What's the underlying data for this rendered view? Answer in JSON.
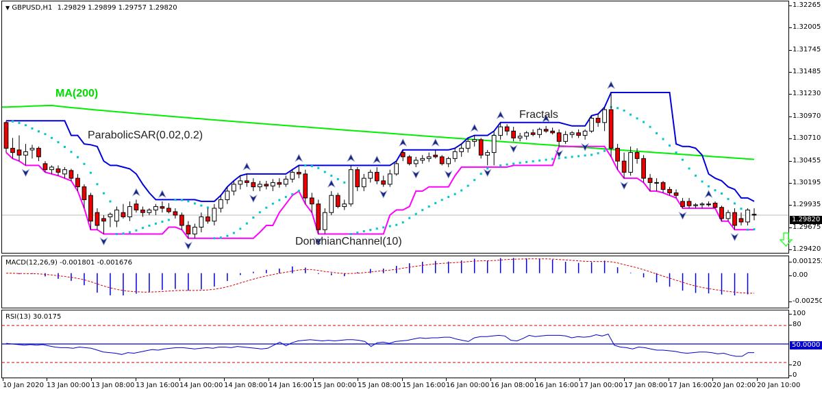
{
  "header": {
    "symbol": "GBPUSD,H1",
    "ohlc": "1.29829 1.29899 1.29757 1.29820",
    "menu_icon": "triangle-down-icon"
  },
  "annotations": {
    "ma": "MA(200)",
    "psar": "ParabolicSAR(0.02,0.2)",
    "fractals": "Fractals",
    "donchian": "DonchianChannel(10)"
  },
  "price_axis": {
    "ticks": [
      "1.32265",
      "1.32005",
      "1.31745",
      "1.31485",
      "1.31230",
      "1.30970",
      "1.30710",
      "1.30455",
      "1.30195",
      "1.29935",
      "1.29675",
      "1.29420"
    ],
    "current_price": "1.29820"
  },
  "macd": {
    "label": "MACD(12,26,9) -0.001801 -0.001676",
    "ticks": [
      "0.001252",
      "0.00",
      "-0.002505"
    ]
  },
  "rsi": {
    "label": "RSI(13) 30.0175",
    "ticks": [
      "100",
      "80",
      "20",
      "0"
    ],
    "current_value": "50.0000"
  },
  "time_axis": {
    "labels": [
      "10 Jan 2020",
      "13 Jan 00:00",
      "13 Jan 08:00",
      "13 Jan 16:00",
      "14 Jan 00:00",
      "14 Jan 08:00",
      "14 Jan 16:00",
      "15 Jan 00:00",
      "15 Jan 08:00",
      "15 Jan 16:00",
      "16 Jan 00:00",
      "16 Jan 08:00",
      "16 Jan 16:00",
      "17 Jan 00:00",
      "17 Jan 08:00",
      "17 Jan 16:00",
      "20 Jan 02:00",
      "20 Jan 10:00"
    ]
  },
  "colors": {
    "ma": "#00ee00",
    "donchian_upper": "#0000dd",
    "donchian_lower": "#ff00ff",
    "psar": "#00c8c8",
    "bear_candle": "#ee0000",
    "bull_candle": "#ffffff",
    "macd_hist": "#0000dd",
    "macd_signal": "#dd0000",
    "rsi_line": "#0000cc",
    "signal_arrow": "#33ff33"
  },
  "chart_data": {
    "type": "candlestick",
    "title": "GBPUSD,H1",
    "ylim": [
      1.2942,
      1.32265
    ],
    "grid": false,
    "current_price": 1.2982,
    "indicators": [
      "MA(200)",
      "ParabolicSAR(0.02,0.2)",
      "Fractals",
      "DonchianChannel(10)",
      "MACD(12,26,9)",
      "RSI(13)"
    ],
    "x_tick_labels": [
      "10 Jan 2020",
      "13 Jan 00:00",
      "13 Jan 08:00",
      "13 Jan 16:00",
      "14 Jan 00:00",
      "14 Jan 08:00",
      "14 Jan 16:00",
      "15 Jan 00:00",
      "15 Jan 08:00",
      "15 Jan 16:00",
      "16 Jan 00:00",
      "16 Jan 08:00",
      "16 Jan 16:00",
      "17 Jan 00:00",
      "17 Jan 08:00",
      "17 Jan 16:00",
      "20 Jan 02:00",
      "20 Jan 10:00"
    ],
    "candles_ohlc": [
      [
        1.309,
        1.3092,
        1.3055,
        1.306
      ],
      [
        1.306,
        1.3072,
        1.3048,
        1.3055
      ],
      [
        1.3058,
        1.3075,
        1.3045,
        1.3052
      ],
      [
        1.3052,
        1.3065,
        1.304,
        1.3056
      ],
      [
        1.3058,
        1.3064,
        1.3048,
        1.306
      ],
      [
        1.306,
        1.3062,
        1.3045,
        1.305
      ],
      [
        1.3042,
        1.3045,
        1.3032,
        1.3035
      ],
      [
        1.3035,
        1.304,
        1.303,
        1.3038
      ],
      [
        1.3036,
        1.304,
        1.3028,
        1.3032
      ],
      [
        1.303,
        1.3038,
        1.3025,
        1.3035
      ],
      [
        1.3034,
        1.3036,
        1.3022,
        1.3025
      ],
      [
        1.3025,
        1.303,
        1.301,
        1.3015
      ],
      [
        1.3015,
        1.3018,
        1.299,
        1.3
      ],
      [
        1.3005,
        1.3008,
        1.2965,
        1.2975
      ],
      [
        1.2985,
        1.299,
        1.2965,
        1.297
      ],
      [
        1.2978,
        1.2982,
        1.296,
        1.2975
      ],
      [
        1.298,
        1.2985,
        1.2968,
        1.2983
      ],
      [
        1.2975,
        1.2992,
        1.2968,
        1.2988
      ],
      [
        1.2985,
        1.2995,
        1.2978,
        1.298
      ],
      [
        1.298,
        1.2998,
        1.2975,
        1.2992
      ],
      [
        1.2995,
        1.3,
        1.2985,
        1.2988
      ],
      [
        1.2988,
        1.2992,
        1.298,
        1.2985
      ],
      [
        1.2985,
        1.299,
        1.2982,
        1.2988
      ],
      [
        1.2988,
        1.2995,
        1.2982,
        1.2992
      ],
      [
        1.2992,
        1.2998,
        1.2985,
        1.299
      ],
      [
        1.299,
        1.2996,
        1.2984,
        1.2986
      ],
      [
        1.2986,
        1.299,
        1.2978,
        1.2982
      ],
      [
        1.2982,
        1.2985,
        1.2965,
        1.297
      ],
      [
        1.297,
        1.2975,
        1.2955,
        1.296
      ],
      [
        1.296,
        1.2972,
        1.2955,
        1.2968
      ],
      [
        1.2968,
        1.2985,
        1.2962,
        1.298
      ],
      [
        1.298,
        1.299,
        1.2972,
        1.2975
      ],
      [
        1.2975,
        1.2995,
        1.297,
        1.299
      ],
      [
        1.299,
        1.3005,
        1.2985,
        1.3
      ],
      [
        1.3,
        1.3015,
        1.2995,
        1.301
      ],
      [
        1.301,
        1.3022,
        1.3005,
        1.3018
      ],
      [
        1.3018,
        1.3028,
        1.3012,
        1.3022
      ],
      [
        1.3022,
        1.303,
        1.3015,
        1.302
      ],
      [
        1.302,
        1.3025,
        1.301,
        1.3015
      ],
      [
        1.3015,
        1.3022,
        1.301,
        1.3018
      ],
      [
        1.3018,
        1.3022,
        1.3012,
        1.3016
      ],
      [
        1.3016,
        1.3024,
        1.301,
        1.302
      ],
      [
        1.302,
        1.3025,
        1.3014,
        1.3018
      ],
      [
        1.3018,
        1.3028,
        1.3015,
        1.3024
      ],
      [
        1.3024,
        1.3035,
        1.302,
        1.3032
      ],
      [
        1.3032,
        1.304,
        1.3025,
        1.303
      ],
      [
        1.303,
        1.3035,
        1.2995,
        1.3002
      ],
      [
        1.3002,
        1.3008,
        1.2985,
        1.2995
      ],
      [
        1.2995,
        1.3,
        1.296,
        1.2965
      ],
      [
        1.2965,
        1.299,
        1.296,
        1.2985
      ],
      [
        1.2985,
        1.301,
        1.2982,
        1.3005
      ],
      [
        1.3005,
        1.3008,
        1.299,
        1.2992
      ],
      [
        1.2992,
        1.3,
        1.2988,
        1.2995
      ],
      [
        1.2995,
        1.304,
        1.2992,
        1.3035
      ],
      [
        1.3035,
        1.3038,
        1.301,
        1.3015
      ],
      [
        1.3015,
        1.303,
        1.301,
        1.3025
      ],
      [
        1.3025,
        1.3035,
        1.302,
        1.3032
      ],
      [
        1.3032,
        1.3038,
        1.3018,
        1.3022
      ],
      [
        1.3022,
        1.3028,
        1.3015,
        1.3018
      ],
      [
        1.3018,
        1.3035,
        1.3015,
        1.303
      ],
      [
        1.303,
        1.3045,
        1.3028,
        1.3042
      ],
      [
        1.3055,
        1.3058,
        1.3045,
        1.305
      ],
      [
        1.305,
        1.3052,
        1.304,
        1.3042
      ],
      [
        1.3042,
        1.305,
        1.3038,
        1.3046
      ],
      [
        1.3046,
        1.3052,
        1.3042,
        1.3048
      ],
      [
        1.3048,
        1.3055,
        1.3044,
        1.305
      ],
      [
        1.3052,
        1.3058,
        1.3048,
        1.305
      ],
      [
        1.305,
        1.3052,
        1.304,
        1.3042
      ],
      [
        1.3042,
        1.305,
        1.3038,
        1.3048
      ],
      [
        1.3048,
        1.306,
        1.3044,
        1.3056
      ],
      [
        1.3056,
        1.3065,
        1.305,
        1.306
      ],
      [
        1.306,
        1.3072,
        1.3055,
        1.3068
      ],
      [
        1.3068,
        1.3075,
        1.3062,
        1.307
      ],
      [
        1.307,
        1.3072,
        1.3048,
        1.3052
      ],
      [
        1.3052,
        1.3058,
        1.304,
        1.3055
      ],
      [
        1.3055,
        1.308,
        1.304,
        1.3075
      ],
      [
        1.3075,
        1.309,
        1.307,
        1.3085
      ],
      [
        1.3085,
        1.3088,
        1.3075,
        1.308
      ],
      [
        1.308,
        1.3085,
        1.3068,
        1.3072
      ],
      [
        1.3072,
        1.3078,
        1.3068,
        1.3074
      ],
      [
        1.3074,
        1.308,
        1.307,
        1.3078
      ],
      [
        1.3078,
        1.3082,
        1.3074,
        1.3076
      ],
      [
        1.3076,
        1.3084,
        1.3072,
        1.3082
      ],
      [
        1.3082,
        1.3086,
        1.3078,
        1.308
      ],
      [
        1.308,
        1.3084,
        1.3076,
        1.3078
      ],
      [
        1.3078,
        1.3082,
        1.3062,
        1.3068
      ],
      [
        1.3068,
        1.308,
        1.3065,
        1.3076
      ],
      [
        1.3076,
        1.308,
        1.3072,
        1.3078
      ],
      [
        1.3078,
        1.3082,
        1.3072,
        1.3075
      ],
      [
        1.3075,
        1.3082,
        1.307,
        1.308
      ],
      [
        1.308,
        1.3098,
        1.3078,
        1.3095
      ],
      [
        1.3095,
        1.31,
        1.3085,
        1.309
      ],
      [
        1.309,
        1.3108,
        1.308,
        1.3105
      ],
      [
        1.3105,
        1.3125,
        1.305,
        1.306
      ],
      [
        1.306,
        1.3065,
        1.3035,
        1.3045
      ],
      [
        1.3045,
        1.3055,
        1.3025,
        1.3032
      ],
      [
        1.3032,
        1.3062,
        1.3028,
        1.3055
      ],
      [
        1.3055,
        1.306,
        1.3042,
        1.3048
      ],
      [
        1.3048,
        1.3052,
        1.302,
        1.3025
      ],
      [
        1.3025,
        1.303,
        1.301,
        1.302
      ],
      [
        1.302,
        1.3025,
        1.301,
        1.302
      ],
      [
        1.302,
        1.3022,
        1.3008,
        1.3012
      ],
      [
        1.3012,
        1.3015,
        1.3005,
        1.3008
      ],
      [
        1.3008,
        1.3012,
        1.3002,
        1.3005
      ],
      [
        1.2998,
        1.3002,
        1.299,
        1.2992
      ],
      [
        1.2998,
        1.3002,
        1.299,
        1.2993
      ],
      [
        1.2993,
        1.2996,
        1.299,
        1.2994
      ],
      [
        1.2994,
        1.2997,
        1.299,
        1.2995
      ],
      [
        1.2995,
        1.2998,
        1.2992,
        1.2994
      ],
      [
        1.2996,
        1.2998,
        1.299,
        1.2991
      ],
      [
        1.2991,
        1.2993,
        1.2975,
        1.2978
      ],
      [
        1.2978,
        1.2988,
        1.2975,
        1.2985
      ],
      [
        1.2985,
        1.299,
        1.2965,
        1.297
      ],
      [
        1.2978,
        1.2985,
        1.297,
        1.2974
      ],
      [
        1.2974,
        1.299,
        1.297,
        1.2988
      ],
      [
        1.2983,
        1.299,
        1.2976,
        1.2982
      ]
    ],
    "ma200": {
      "start": 1.3108,
      "peak": 1.311,
      "end": 1.3047
    },
    "macd_range": [
      -0.002505,
      0.001252
    ],
    "macd_last": {
      "main": -0.001801,
      "signal": -0.001676
    },
    "rsi_levels": [
      20,
      50,
      80
    ],
    "rsi_last": 30.0175,
    "rsi_series": [
      51,
      50,
      49,
      48,
      49,
      48,
      49,
      47,
      45,
      44,
      44,
      43,
      45,
      44,
      43,
      40,
      37,
      36,
      35,
      33,
      36,
      35,
      37,
      39,
      41,
      40,
      42,
      43,
      44,
      44,
      43,
      42,
      43,
      44,
      43,
      45,
      45,
      44,
      46,
      45,
      44,
      43,
      42,
      43,
      48,
      53,
      47,
      52,
      55,
      56,
      57,
      56,
      55,
      56,
      55,
      56,
      57,
      57,
      56,
      54,
      46,
      52,
      53,
      51,
      54,
      55,
      56,
      58,
      60,
      59,
      60,
      60,
      61,
      61,
      58,
      56,
      54,
      60,
      62,
      62,
      63,
      64,
      63,
      56,
      55,
      59,
      64,
      62,
      63,
      64,
      64,
      64,
      63,
      60,
      62,
      61,
      62,
      65,
      63,
      66,
      48,
      45,
      44,
      42,
      45,
      44,
      42,
      40,
      40,
      39,
      38,
      36,
      35,
      36,
      37,
      37,
      36,
      34,
      35,
      32,
      30,
      30,
      36,
      36
    ]
  }
}
